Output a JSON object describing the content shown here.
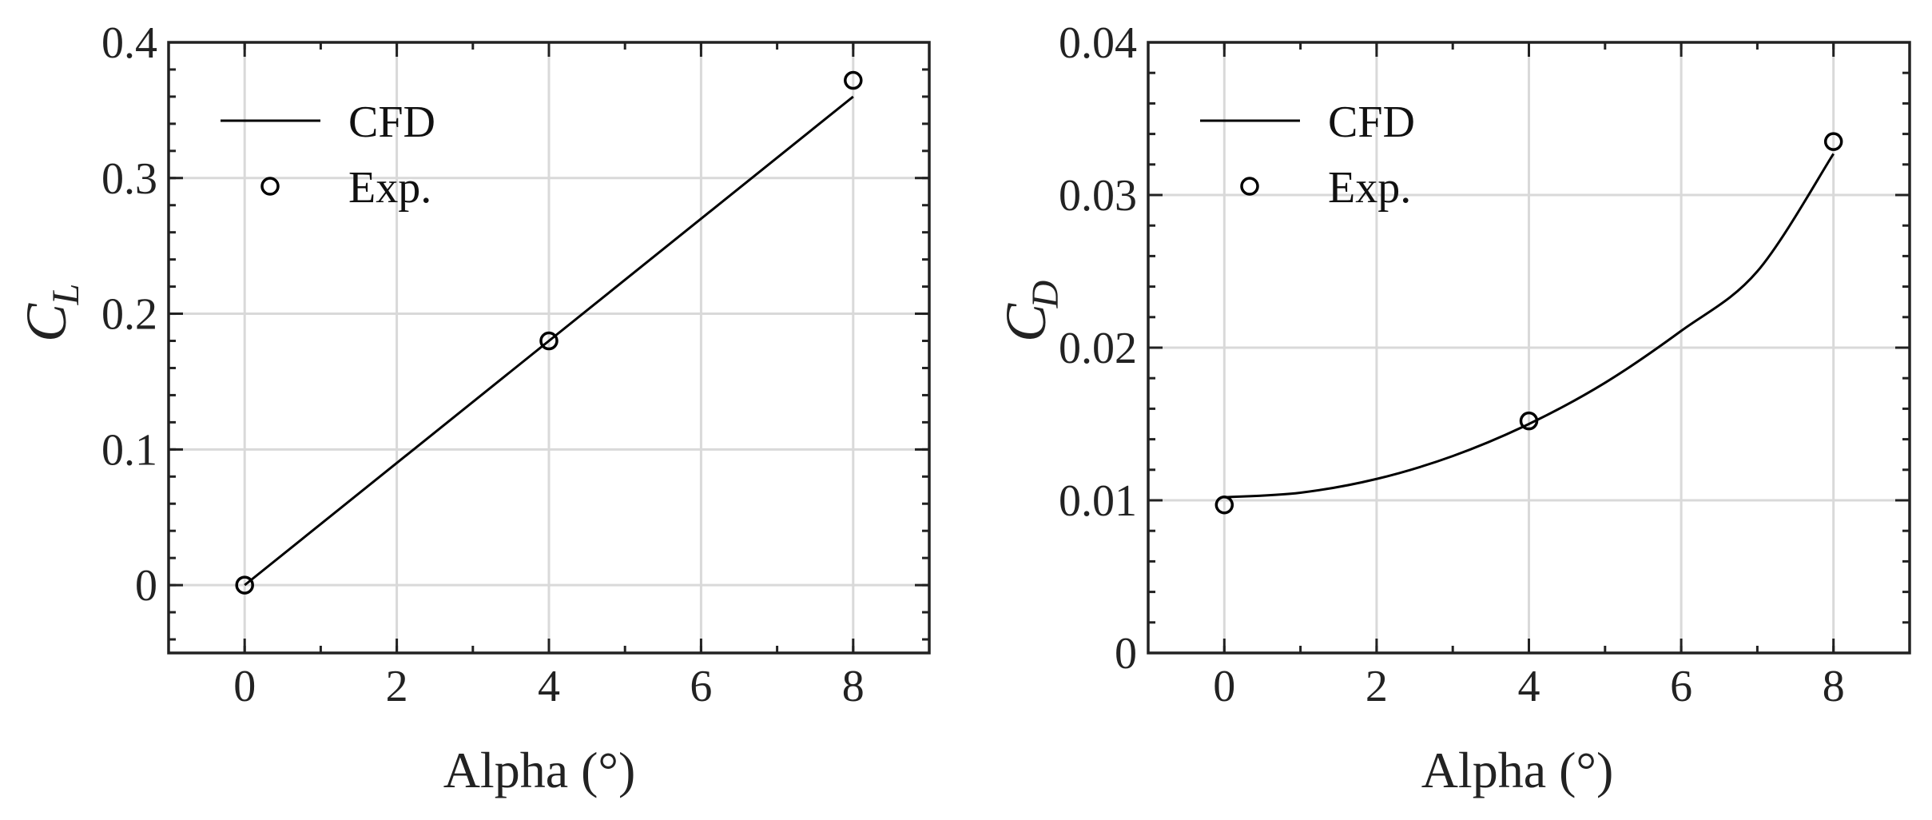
{
  "chart_data": [
    {
      "type": "line",
      "ylabel_symbol": "C",
      "ylabel_subscript": "L",
      "xlabel": "Alpha (°)",
      "xlim": [
        -1,
        9
      ],
      "ylim": [
        -0.05,
        0.4
      ],
      "xticks": [
        0,
        2,
        4,
        6,
        8
      ],
      "xtick_labels": [
        "0",
        "2",
        "4",
        "6",
        "8"
      ],
      "yticks": [
        0,
        0.1,
        0.2,
        0.3,
        0.4
      ],
      "ytick_labels": [
        "0",
        "0.1",
        "0.2",
        "0.3",
        "0.4"
      ],
      "grid": true,
      "legend_position": "top-left",
      "series": [
        {
          "name": "CFD",
          "style": "line",
          "x": [
            0,
            8
          ],
          "y": [
            0,
            0.36
          ]
        },
        {
          "name": "Exp.",
          "style": "markers",
          "x": [
            0,
            4,
            8
          ],
          "y": [
            0,
            0.18,
            0.372
          ]
        }
      ]
    },
    {
      "type": "line",
      "ylabel_symbol": "C",
      "ylabel_subscript": "D",
      "xlabel": "Alpha (°)",
      "xlim": [
        -1,
        9
      ],
      "ylim": [
        0,
        0.04
      ],
      "xticks": [
        0,
        2,
        4,
        6,
        8
      ],
      "xtick_labels": [
        "0",
        "2",
        "4",
        "6",
        "8"
      ],
      "yticks": [
        0,
        0.01,
        0.02,
        0.03,
        0.04
      ],
      "ytick_labels": [
        "0",
        "0.01",
        "0.02",
        "0.03",
        "0.04"
      ],
      "grid": true,
      "legend_position": "top-left",
      "series": [
        {
          "name": "CFD",
          "style": "line",
          "x": [
            0,
            1,
            2,
            3,
            4,
            5,
            6,
            7,
            8
          ],
          "y": [
            0.0102,
            0.0105,
            0.0114,
            0.0129,
            0.015,
            0.0177,
            0.0211,
            0.025,
            0.0327
          ]
        },
        {
          "name": "Exp.",
          "style": "markers",
          "x": [
            0,
            4,
            8
          ],
          "y": [
            0.0097,
            0.0152,
            0.0335
          ]
        }
      ]
    }
  ],
  "colors": {
    "line": "#000000",
    "axes": "#222222",
    "grid": "#d9d9d9"
  }
}
